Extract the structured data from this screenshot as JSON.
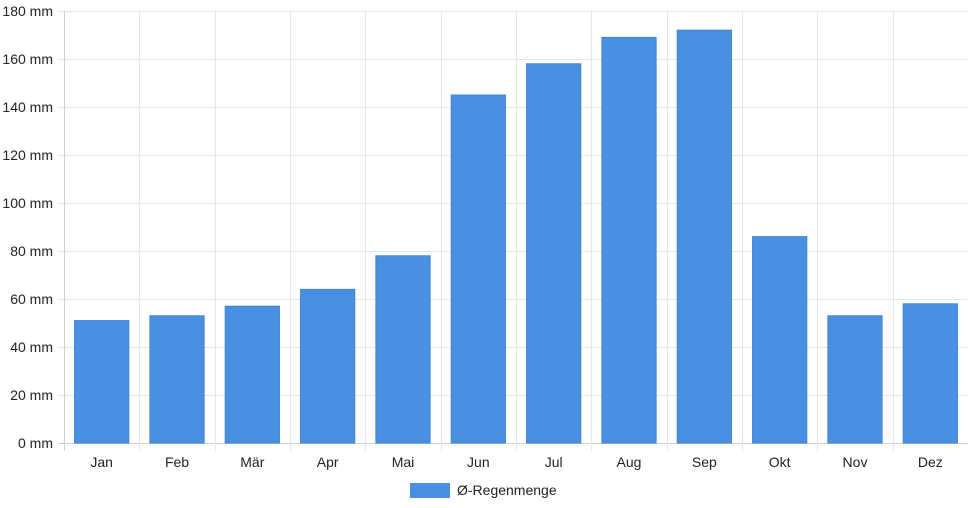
{
  "chart_data": {
    "type": "bar",
    "categories": [
      "Jan",
      "Feb",
      "Mär",
      "Apr",
      "Mai",
      "Jun",
      "Jul",
      "Aug",
      "Sep",
      "Okt",
      "Nov",
      "Dez"
    ],
    "series": [
      {
        "name": "Ø-Regenmenge",
        "values": [
          51,
          53,
          57,
          64,
          78,
          145,
          158,
          169,
          172,
          86,
          53,
          58
        ],
        "color": "#4a90e2"
      }
    ],
    "y_ticks": [
      "0 mm",
      "20 mm",
      "40 mm",
      "60 mm",
      "80 mm",
      "100 mm",
      "120 mm",
      "140 mm",
      "160 mm",
      "180 mm"
    ],
    "ylim": [
      0,
      180
    ],
    "unit": "mm",
    "grid": true,
    "legend_position": "bottom",
    "gridline_color": "#e6e6e6",
    "axis_color": "#cfcfcf"
  }
}
